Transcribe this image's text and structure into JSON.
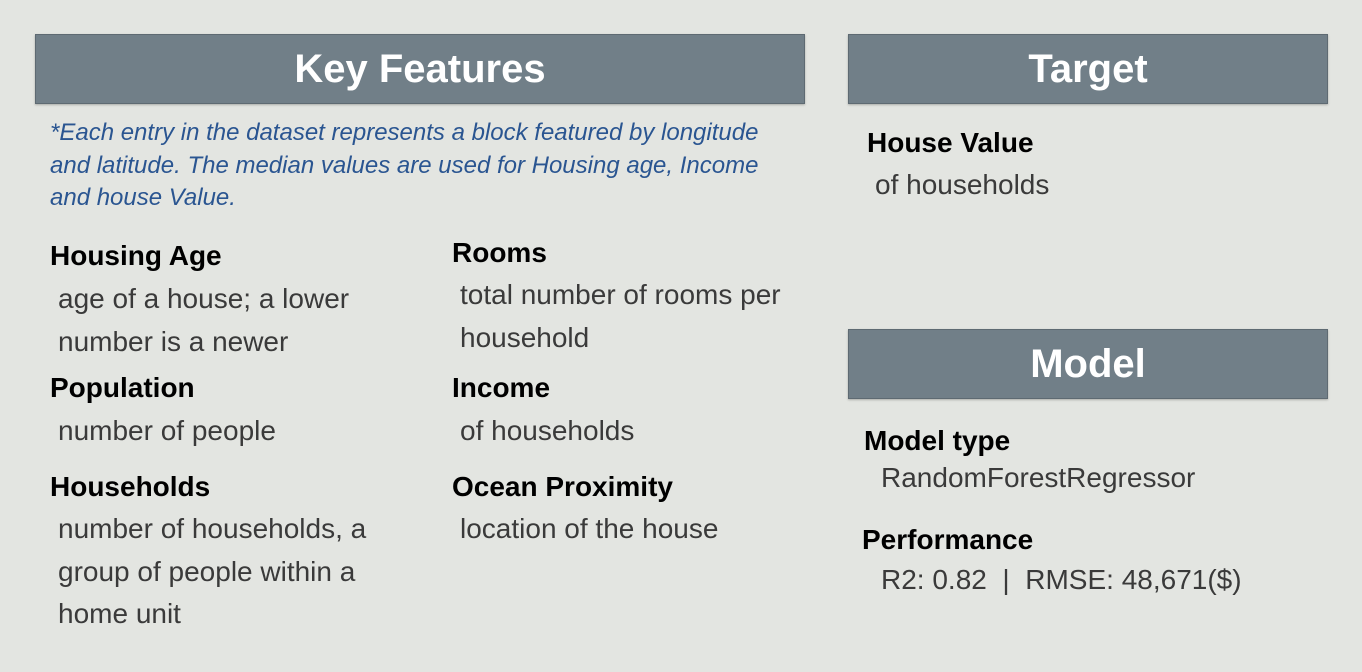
{
  "key_features": {
    "title": "Key Features",
    "note": "*Each entry in the dataset represents a block featured by longitude and latitude. The median values are used for Housing age, Income and house Value.",
    "features": [
      {
        "term": "Housing Age",
        "description": "age of a house; a lower number is a newer"
      },
      {
        "term": "Rooms",
        "description": "total number of rooms per household"
      },
      {
        "term": "Population",
        "description": "number of people"
      },
      {
        "term": "Income",
        "description": "of households"
      },
      {
        "term": "Households",
        "description": "number of households, a group of people within a home unit"
      },
      {
        "term": "Ocean Proximity",
        "description": "location of the house"
      }
    ]
  },
  "target": {
    "title": "Target",
    "term": "House Value",
    "description": "of households"
  },
  "model": {
    "title": "Model",
    "type_label": "Model type",
    "type_value": "RandomForestRegressor",
    "performance_label": "Performance",
    "performance_value": "R2: 0.82  |  RMSE: 48,671($)"
  },
  "colors": {
    "banner_bg": "#717f88",
    "note_text": "#2a5591",
    "page_bg": "#e3e5e1"
  }
}
